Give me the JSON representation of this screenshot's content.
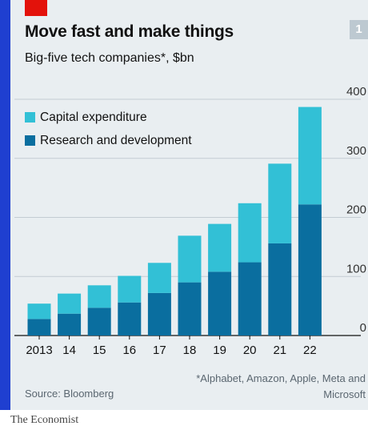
{
  "header": {
    "title": "Move fast and make things",
    "subtitle": "Big-five tech companies*, $bn",
    "chart_number": "1"
  },
  "footer": {
    "source": "Source: Bloomberg",
    "footnote": "*Alphabet, Amazon, Apple, Meta and Microsoft",
    "brand": "The Economist"
  },
  "colors": {
    "capex": "#32c0d6",
    "rnd": "#0a6e9f",
    "grid": "#c3ccd3",
    "text": "#121212"
  },
  "chart_data": {
    "type": "bar",
    "stacked": true,
    "title": "Move fast and make things",
    "subtitle": "Big-five tech companies*, $bn",
    "categories": [
      "2013",
      "14",
      "15",
      "16",
      "17",
      "18",
      "19",
      "20",
      "21",
      "22"
    ],
    "series": [
      {
        "name": "Research and development",
        "values": [
          28,
          37,
          47,
          56,
          72,
          90,
          108,
          124,
          156,
          222
        ]
      },
      {
        "name": "Capital expenditure",
        "values": [
          26,
          34,
          38,
          45,
          51,
          79,
          81,
          100,
          135,
          165
        ]
      }
    ],
    "y_ticks": [
      0,
      100,
      200,
      300,
      400
    ],
    "ylim": [
      0,
      400
    ],
    "legend": [
      "Capital expenditure",
      "Research and development"
    ],
    "legend_position": "top-left",
    "grid": true
  }
}
